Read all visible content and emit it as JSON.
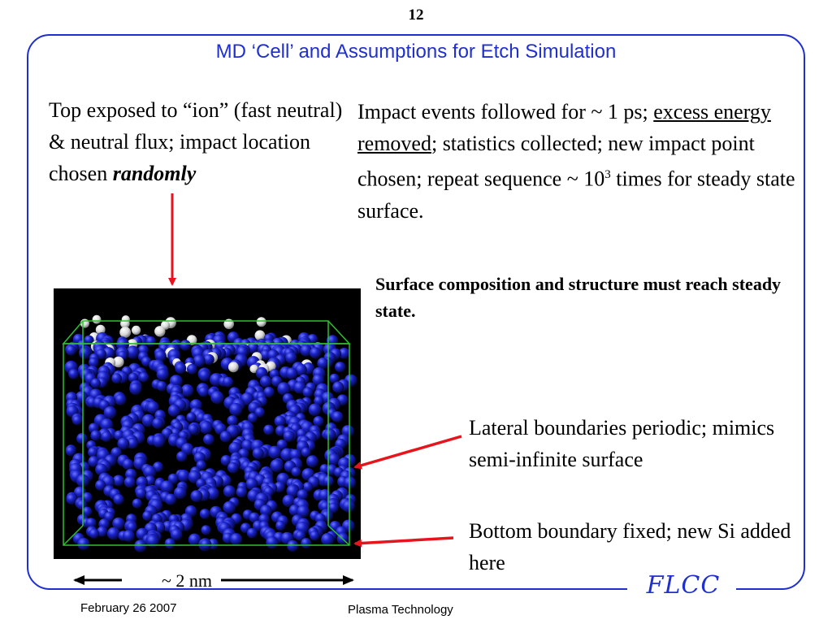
{
  "slide": {
    "number": "12",
    "title": "MD ‘Cell’ and Assumptions for Etch Simulation"
  },
  "left_text": {
    "line1": "Top exposed to “ion” (fast neutral) & neutral flux; impact location chosen ",
    "emphasis": "randomly"
  },
  "right_text": {
    "part1": "Impact events followed for ~ 1 ps; ",
    "underlined": "excess energy removed",
    "part2": "; statistics collected; new impact point chosen; repeat sequence ~ ",
    "base": "10",
    "exponent": "3",
    "part3": " times for steady state surface."
  },
  "steady_note": "Surface composition and structure must reach steady state.",
  "lateral_note": "Lateral boundaries periodic; mimics semi-infinite surface",
  "bottom_note": "Bottom boundary fixed; new Si added here",
  "scale_label": "~ 2 nm",
  "logo_text": "FLCC",
  "footer": {
    "date": "February 26 2007",
    "center": "Plasma Technology"
  },
  "colors": {
    "accent": "#1f2fd0",
    "arrow": "#e8141c",
    "cell_box": "#2fbf2f",
    "atom_si": "#1a22c8",
    "atom_surface": "#e8e8e8"
  }
}
